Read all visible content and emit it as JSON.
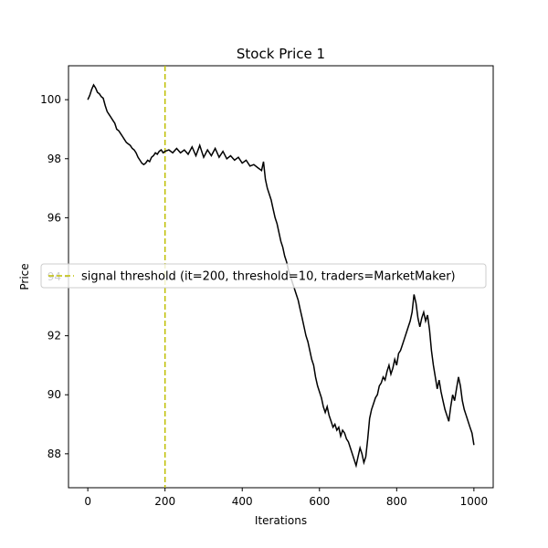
{
  "chart_data": {
    "type": "line",
    "title": "Stock Price 1",
    "xlabel": "Iterations",
    "ylabel": "Price",
    "xlim": [
      -50,
      1050
    ],
    "ylim": [
      86.85,
      101.15
    ],
    "x_ticks": [
      0,
      200,
      400,
      600,
      800,
      1000
    ],
    "y_ticks": [
      88,
      90,
      92,
      94,
      96,
      98,
      100
    ],
    "grid": false,
    "series": [
      {
        "color": "#000000",
        "points": [
          [
            0,
            100.0
          ],
          [
            5,
            100.15
          ],
          [
            10,
            100.35
          ],
          [
            15,
            100.5
          ],
          [
            20,
            100.4
          ],
          [
            25,
            100.25
          ],
          [
            30,
            100.2
          ],
          [
            35,
            100.1
          ],
          [
            40,
            100.05
          ],
          [
            45,
            99.8
          ],
          [
            50,
            99.6
          ],
          [
            55,
            99.5
          ],
          [
            60,
            99.4
          ],
          [
            65,
            99.3
          ],
          [
            70,
            99.2
          ],
          [
            75,
            99.0
          ],
          [
            80,
            98.95
          ],
          [
            85,
            98.85
          ],
          [
            90,
            98.75
          ],
          [
            95,
            98.65
          ],
          [
            100,
            98.55
          ],
          [
            105,
            98.5
          ],
          [
            110,
            98.45
          ],
          [
            115,
            98.35
          ],
          [
            120,
            98.3
          ],
          [
            125,
            98.2
          ],
          [
            130,
            98.05
          ],
          [
            135,
            97.95
          ],
          [
            140,
            97.85
          ],
          [
            145,
            97.8
          ],
          [
            150,
            97.85
          ],
          [
            155,
            97.95
          ],
          [
            160,
            97.9
          ],
          [
            165,
            98.05
          ],
          [
            170,
            98.1
          ],
          [
            175,
            98.2
          ],
          [
            180,
            98.15
          ],
          [
            185,
            98.25
          ],
          [
            190,
            98.3
          ],
          [
            195,
            98.2
          ],
          [
            200,
            98.25
          ],
          [
            210,
            98.3
          ],
          [
            220,
            98.2
          ],
          [
            230,
            98.35
          ],
          [
            240,
            98.2
          ],
          [
            250,
            98.3
          ],
          [
            260,
            98.15
          ],
          [
            270,
            98.4
          ],
          [
            280,
            98.1
          ],
          [
            290,
            98.45
          ],
          [
            300,
            98.05
          ],
          [
            310,
            98.3
          ],
          [
            320,
            98.1
          ],
          [
            330,
            98.35
          ],
          [
            340,
            98.05
          ],
          [
            350,
            98.25
          ],
          [
            360,
            98.0
          ],
          [
            370,
            98.1
          ],
          [
            380,
            97.95
          ],
          [
            390,
            98.05
          ],
          [
            400,
            97.85
          ],
          [
            410,
            97.95
          ],
          [
            420,
            97.75
          ],
          [
            430,
            97.8
          ],
          [
            440,
            97.7
          ],
          [
            450,
            97.6
          ],
          [
            455,
            97.9
          ],
          [
            460,
            97.3
          ],
          [
            465,
            97.0
          ],
          [
            470,
            96.8
          ],
          [
            475,
            96.6
          ],
          [
            480,
            96.3
          ],
          [
            485,
            96.0
          ],
          [
            490,
            95.8
          ],
          [
            495,
            95.5
          ],
          [
            500,
            95.2
          ],
          [
            505,
            95.0
          ],
          [
            510,
            94.7
          ],
          [
            515,
            94.5
          ],
          [
            520,
            94.2
          ],
          [
            525,
            94.0
          ],
          [
            530,
            93.8
          ],
          [
            535,
            93.6
          ],
          [
            540,
            93.4
          ],
          [
            545,
            93.2
          ],
          [
            550,
            92.9
          ],
          [
            555,
            92.6
          ],
          [
            560,
            92.3
          ],
          [
            565,
            92.0
          ],
          [
            570,
            91.8
          ],
          [
            575,
            91.5
          ],
          [
            580,
            91.2
          ],
          [
            585,
            91.0
          ],
          [
            590,
            90.6
          ],
          [
            595,
            90.3
          ],
          [
            600,
            90.1
          ],
          [
            605,
            89.9
          ],
          [
            610,
            89.6
          ],
          [
            615,
            89.4
          ],
          [
            620,
            89.6
          ],
          [
            625,
            89.3
          ],
          [
            630,
            89.1
          ],
          [
            635,
            88.9
          ],
          [
            640,
            89.0
          ],
          [
            645,
            88.8
          ],
          [
            650,
            88.9
          ],
          [
            655,
            88.6
          ],
          [
            660,
            88.8
          ],
          [
            665,
            88.7
          ],
          [
            670,
            88.5
          ],
          [
            675,
            88.4
          ],
          [
            680,
            88.2
          ],
          [
            685,
            88.0
          ],
          [
            690,
            87.8
          ],
          [
            695,
            87.6
          ],
          [
            700,
            87.9
          ],
          [
            705,
            88.2
          ],
          [
            710,
            88.0
          ],
          [
            715,
            87.7
          ],
          [
            720,
            87.9
          ],
          [
            725,
            88.5
          ],
          [
            730,
            89.2
          ],
          [
            735,
            89.5
          ],
          [
            740,
            89.7
          ],
          [
            745,
            89.9
          ],
          [
            750,
            90.0
          ],
          [
            755,
            90.3
          ],
          [
            760,
            90.4
          ],
          [
            765,
            90.6
          ],
          [
            770,
            90.5
          ],
          [
            775,
            90.8
          ],
          [
            780,
            91.0
          ],
          [
            785,
            90.7
          ],
          [
            790,
            90.9
          ],
          [
            795,
            91.2
          ],
          [
            800,
            91.0
          ],
          [
            805,
            91.4
          ],
          [
            810,
            91.5
          ],
          [
            815,
            91.7
          ],
          [
            820,
            91.9
          ],
          [
            825,
            92.1
          ],
          [
            830,
            92.3
          ],
          [
            835,
            92.5
          ],
          [
            840,
            92.8
          ],
          [
            845,
            93.4
          ],
          [
            850,
            93.1
          ],
          [
            855,
            92.6
          ],
          [
            860,
            92.3
          ],
          [
            865,
            92.6
          ],
          [
            870,
            92.8
          ],
          [
            875,
            92.5
          ],
          [
            880,
            92.7
          ],
          [
            885,
            92.2
          ],
          [
            890,
            91.5
          ],
          [
            895,
            91.0
          ],
          [
            900,
            90.6
          ],
          [
            905,
            90.2
          ],
          [
            910,
            90.5
          ],
          [
            915,
            90.1
          ],
          [
            920,
            89.8
          ],
          [
            925,
            89.5
          ],
          [
            930,
            89.3
          ],
          [
            935,
            89.1
          ],
          [
            940,
            89.6
          ],
          [
            945,
            90.0
          ],
          [
            950,
            89.8
          ],
          [
            955,
            90.2
          ],
          [
            960,
            90.6
          ],
          [
            965,
            90.3
          ],
          [
            970,
            89.8
          ],
          [
            975,
            89.5
          ],
          [
            980,
            89.3
          ],
          [
            985,
            89.1
          ],
          [
            990,
            88.9
          ],
          [
            995,
            88.7
          ],
          [
            1000,
            88.3
          ]
        ]
      }
    ],
    "threshold": {
      "x": 200,
      "color": "#bfbf00",
      "label": "signal threshold (it=200, threshold=10, traders=MarketMaker)"
    },
    "legend_position": "center-left"
  }
}
